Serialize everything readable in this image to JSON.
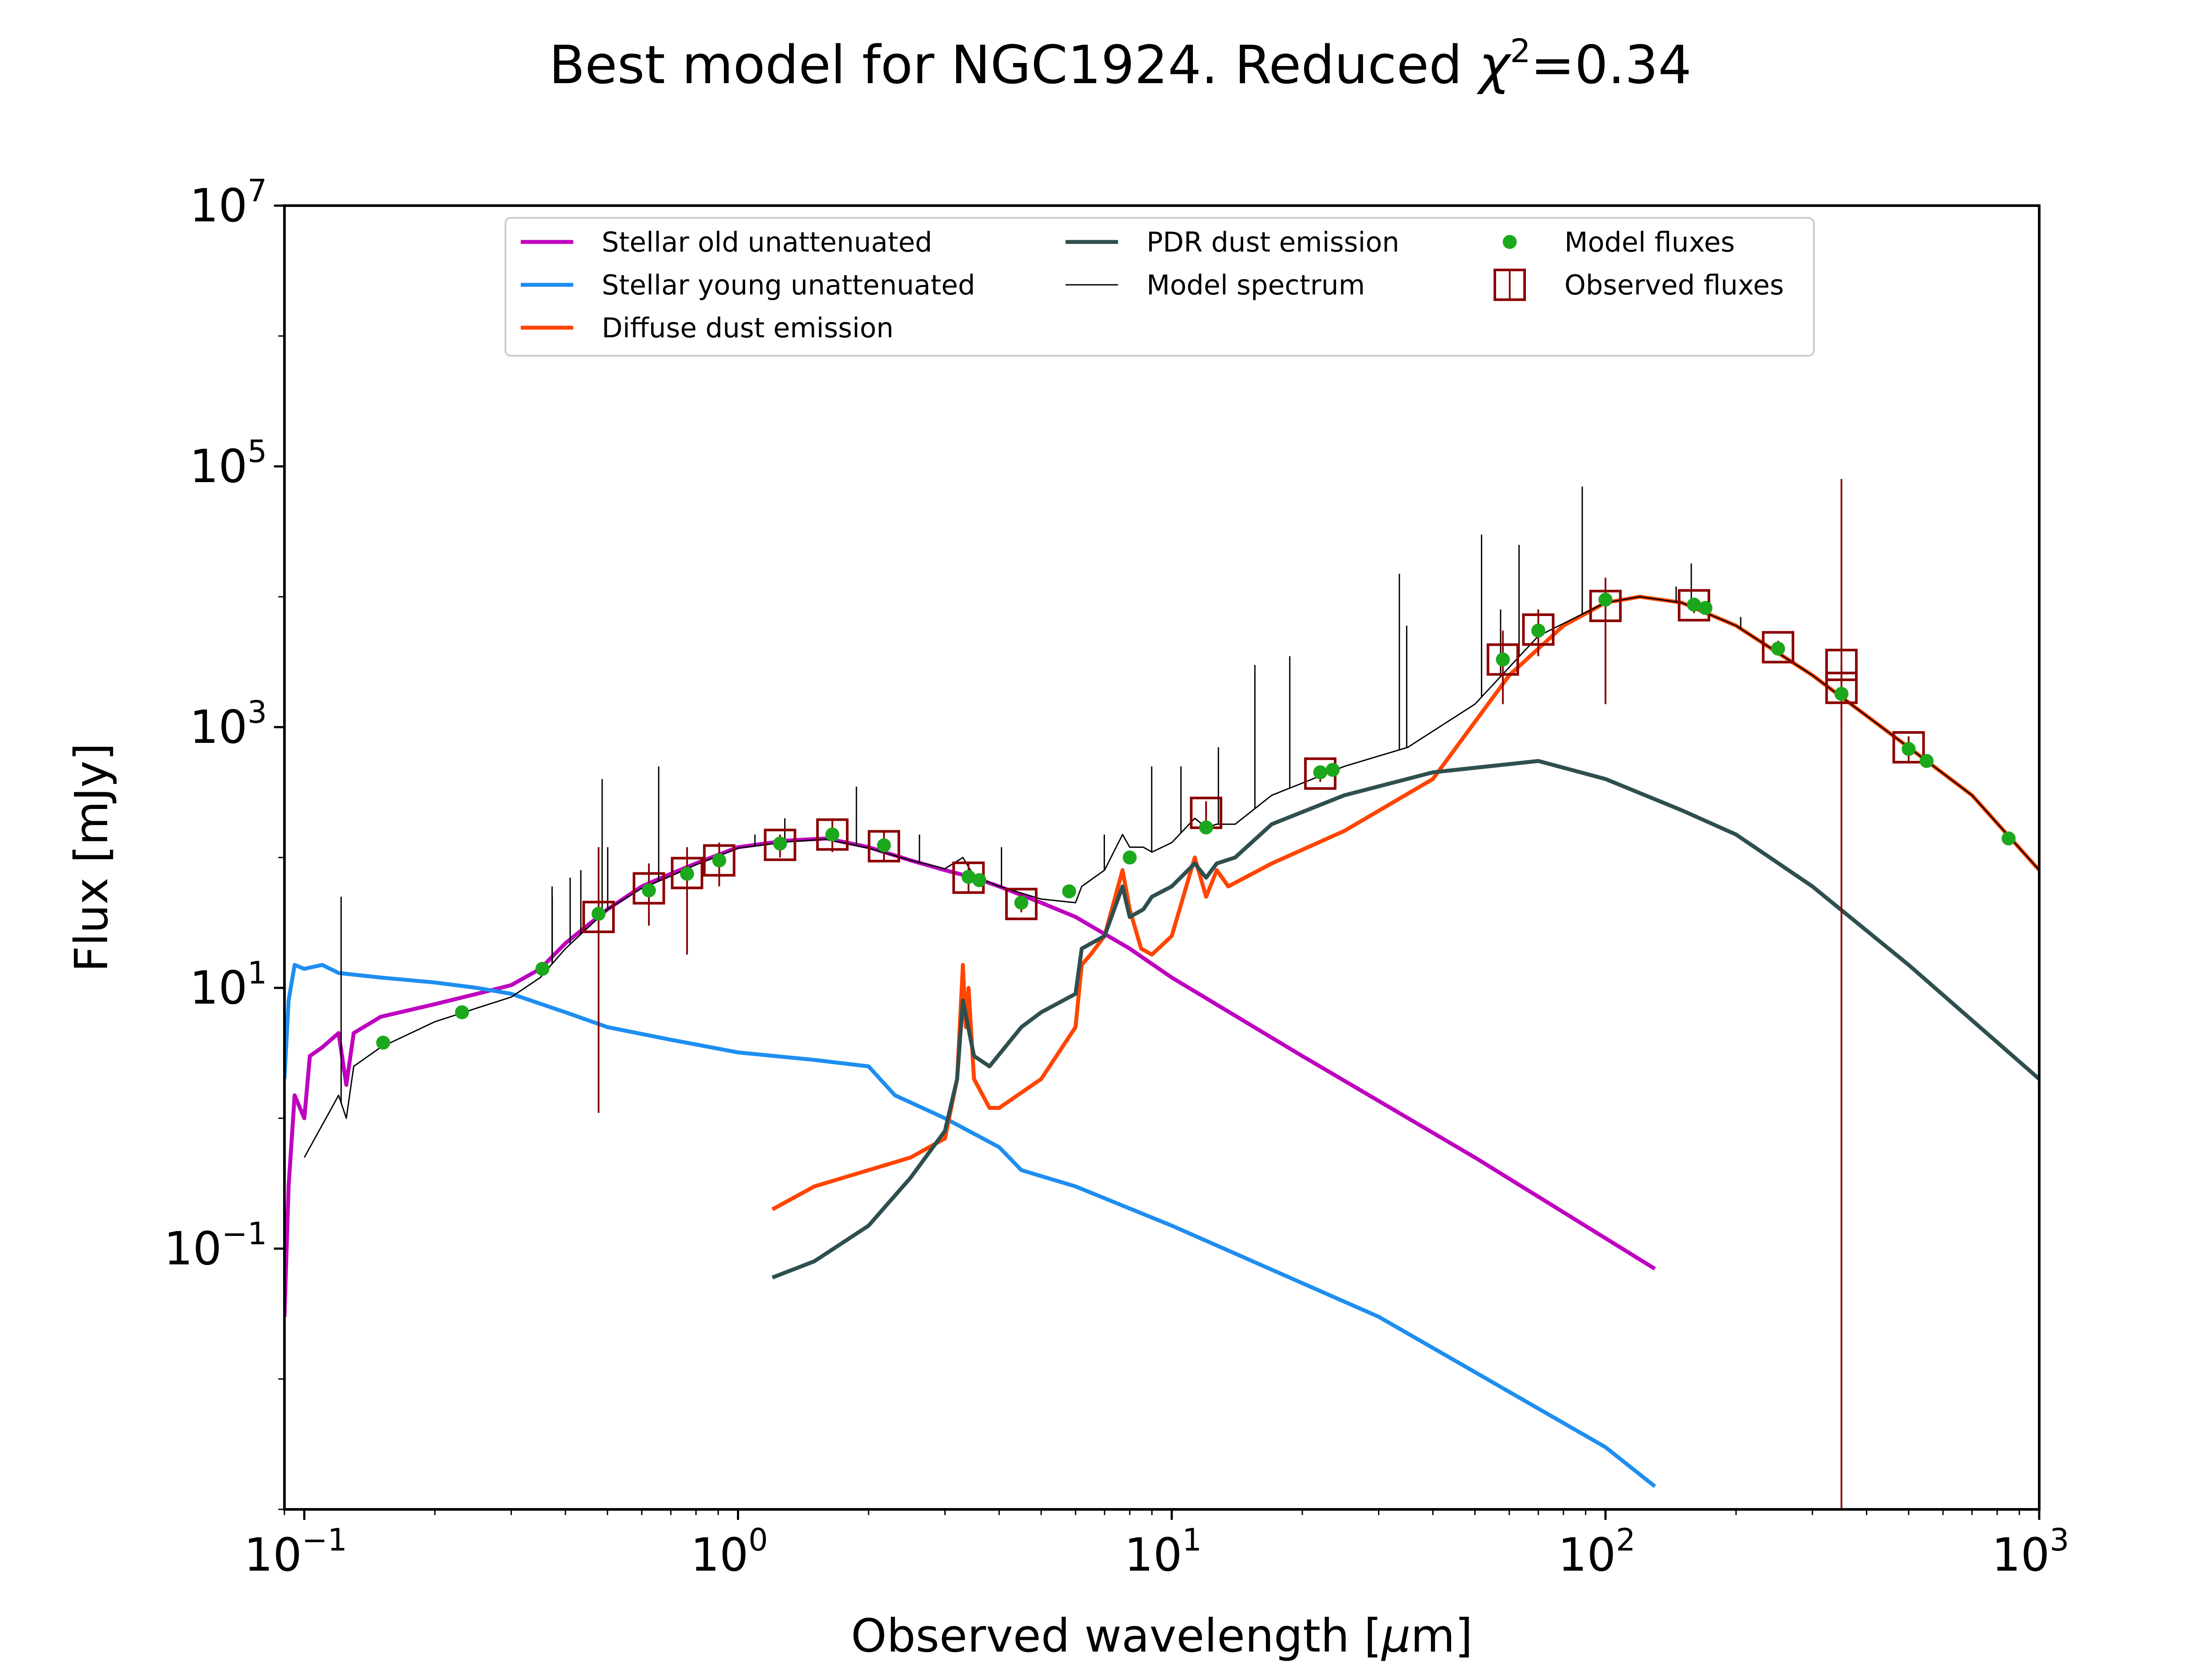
{
  "chart_data": {
    "type": "line",
    "title": "Best model for NGC1924. Reduced χ²=0.34",
    "title_parts": {
      "main": "Best model for NGC1924. Reduced ",
      "chi": "χ",
      "sup": "2",
      "value": "=0.34"
    },
    "xlabel": "Observed wavelength [μm]",
    "xlabel_parts": {
      "before": "Observed wavelength [",
      "mu": "μ",
      "after": "m]"
    },
    "ylabel": "Flux [mJy]",
    "x_scale": "log",
    "y_scale": "log",
    "xlim": [
      0.09,
      1000
    ],
    "ylim": [
      0.001,
      10000000
    ],
    "x_ticks": [
      {
        "base": "10",
        "exp": "−1",
        "value": 0.1
      },
      {
        "base": "10",
        "exp": "0",
        "value": 1
      },
      {
        "base": "10",
        "exp": "1",
        "value": 10
      },
      {
        "base": "10",
        "exp": "2",
        "value": 100
      },
      {
        "base": "10",
        "exp": "3",
        "value": 1000
      }
    ],
    "y_ticks": [
      {
        "base": "10",
        "exp": "−1",
        "value": 0.1
      },
      {
        "base": "10",
        "exp": "1",
        "value": 10
      },
      {
        "base": "10",
        "exp": "3",
        "value": 1000
      },
      {
        "base": "10",
        "exp": "5",
        "value": 100000
      },
      {
        "base": "10",
        "exp": "7",
        "value": 10000000
      }
    ],
    "legend_position": "upper center",
    "series": [
      {
        "name": "Stellar old unattenuated",
        "color": "#bf00bf",
        "style": "line",
        "points": [
          [
            0.09,
            0.03
          ],
          [
            0.092,
            0.3
          ],
          [
            0.095,
            1.5
          ],
          [
            0.1,
            1.0
          ],
          [
            0.103,
            3.0
          ],
          [
            0.11,
            3.5
          ],
          [
            0.12,
            4.5
          ],
          [
            0.125,
            1.8
          ],
          [
            0.13,
            4.5
          ],
          [
            0.15,
            6.0
          ],
          [
            0.2,
            7.5
          ],
          [
            0.25,
            9.0
          ],
          [
            0.3,
            10.5
          ],
          [
            0.35,
            14
          ],
          [
            0.4,
            22
          ],
          [
            0.5,
            40
          ],
          [
            0.6,
            60
          ],
          [
            0.7,
            75
          ],
          [
            0.8,
            90
          ],
          [
            1.0,
            120
          ],
          [
            1.3,
            135
          ],
          [
            1.6,
            140
          ],
          [
            2.0,
            120
          ],
          [
            2.5,
            95
          ],
          [
            3.0,
            80
          ],
          [
            3.5,
            70
          ],
          [
            4.0,
            60
          ],
          [
            5.0,
            45
          ],
          [
            6.0,
            35
          ],
          [
            8.0,
            20
          ],
          [
            10.0,
            12
          ],
          [
            20.0,
            3.0
          ],
          [
            50.0,
            0.5
          ],
          [
            130.0,
            0.07
          ]
        ]
      },
      {
        "name": "Stellar young unattenuated",
        "color": "#1e8ef0",
        "style": "line",
        "points": [
          [
            0.09,
            2.0
          ],
          [
            0.092,
            8.0
          ],
          [
            0.095,
            15
          ],
          [
            0.1,
            14
          ],
          [
            0.11,
            15
          ],
          [
            0.12,
            13
          ],
          [
            0.15,
            12
          ],
          [
            0.2,
            11
          ],
          [
            0.25,
            10
          ],
          [
            0.3,
            9
          ],
          [
            0.4,
            6.5
          ],
          [
            0.5,
            5.0
          ],
          [
            0.7,
            4.0
          ],
          [
            1.0,
            3.2
          ],
          [
            1.5,
            2.8
          ],
          [
            2.0,
            2.5
          ],
          [
            2.3,
            1.5
          ],
          [
            3.0,
            1.0
          ],
          [
            4.0,
            0.6
          ],
          [
            4.5,
            0.4
          ],
          [
            6.0,
            0.3
          ],
          [
            10.0,
            0.15
          ],
          [
            30.0,
            0.03
          ],
          [
            100.0,
            0.003
          ],
          [
            130.0,
            0.0015
          ]
        ]
      },
      {
        "name": "Diffuse dust emission",
        "color": "#ff4500",
        "style": "line",
        "points": [
          [
            1.2,
            0.2
          ],
          [
            1.5,
            0.3
          ],
          [
            2.0,
            0.4
          ],
          [
            2.5,
            0.5
          ],
          [
            3.0,
            0.7
          ],
          [
            3.2,
            2.0
          ],
          [
            3.3,
            15
          ],
          [
            3.35,
            5
          ],
          [
            3.4,
            10
          ],
          [
            3.5,
            2
          ],
          [
            3.8,
            1.2
          ],
          [
            4.0,
            1.2
          ],
          [
            5.0,
            2.0
          ],
          [
            6.0,
            5.0
          ],
          [
            6.2,
            15
          ],
          [
            6.5,
            18
          ],
          [
            7.0,
            25
          ],
          [
            7.7,
            80
          ],
          [
            8.0,
            40
          ],
          [
            8.5,
            20
          ],
          [
            9.0,
            18
          ],
          [
            10.0,
            25
          ],
          [
            11.3,
            100
          ],
          [
            12.0,
            50
          ],
          [
            12.7,
            80
          ],
          [
            13.5,
            60
          ],
          [
            17.0,
            90
          ],
          [
            25.0,
            160
          ],
          [
            40.0,
            400
          ],
          [
            60.0,
            2500
          ],
          [
            80.0,
            6000
          ],
          [
            100.0,
            9000
          ],
          [
            120.0,
            10000
          ],
          [
            150.0,
            9000
          ],
          [
            200.0,
            6000
          ],
          [
            300.0,
            2500
          ],
          [
            500.0,
            700
          ],
          [
            700.0,
            300
          ],
          [
            1000.0,
            80
          ]
        ]
      },
      {
        "name": "PDR dust emission",
        "color": "#2f4f4f",
        "style": "line",
        "points": [
          [
            1.2,
            0.06
          ],
          [
            1.5,
            0.08
          ],
          [
            2.0,
            0.15
          ],
          [
            2.5,
            0.35
          ],
          [
            3.0,
            0.8
          ],
          [
            3.2,
            2.0
          ],
          [
            3.3,
            8.0
          ],
          [
            3.5,
            3.0
          ],
          [
            3.8,
            2.5
          ],
          [
            4.5,
            5.0
          ],
          [
            5.0,
            6.5
          ],
          [
            6.0,
            9
          ],
          [
            6.2,
            20
          ],
          [
            7.0,
            25
          ],
          [
            7.7,
            60
          ],
          [
            8.0,
            35
          ],
          [
            8.6,
            40
          ],
          [
            9.0,
            50
          ],
          [
            10.0,
            60
          ],
          [
            11.3,
            90
          ],
          [
            12.0,
            70
          ],
          [
            12.7,
            90
          ],
          [
            14.0,
            100
          ],
          [
            17.0,
            180
          ],
          [
            25.0,
            300
          ],
          [
            40.0,
            450
          ],
          [
            70.0,
            550
          ],
          [
            100.0,
            400
          ],
          [
            150.0,
            230
          ],
          [
            200.0,
            150
          ],
          [
            300.0,
            60
          ],
          [
            500.0,
            15
          ],
          [
            1000.0,
            2.0
          ]
        ]
      },
      {
        "name": "Model spectrum",
        "color": "#000000",
        "style": "line",
        "points": [
          [
            0.1,
            0.5
          ],
          [
            0.12,
            1.5
          ],
          [
            0.125,
            1.0
          ],
          [
            0.13,
            2.5
          ],
          [
            0.15,
            3.5
          ],
          [
            0.2,
            5.5
          ],
          [
            0.25,
            7
          ],
          [
            0.3,
            8.5
          ],
          [
            0.35,
            12
          ],
          [
            0.4,
            20
          ],
          [
            0.5,
            40
          ],
          [
            0.6,
            58
          ],
          [
            0.7,
            72
          ],
          [
            0.8,
            88
          ],
          [
            1.0,
            118
          ],
          [
            1.3,
            132
          ],
          [
            1.6,
            138
          ],
          [
            2.0,
            118
          ],
          [
            2.5,
            95
          ],
          [
            3.0,
            82
          ],
          [
            3.3,
            100
          ],
          [
            3.5,
            72
          ],
          [
            4.0,
            60
          ],
          [
            5.0,
            48
          ],
          [
            6.0,
            45
          ],
          [
            6.2,
            60
          ],
          [
            7.0,
            80
          ],
          [
            7.7,
            150
          ],
          [
            8.0,
            120
          ],
          [
            8.6,
            120
          ],
          [
            9.0,
            110
          ],
          [
            10.0,
            130
          ],
          [
            11.3,
            200
          ],
          [
            12.0,
            170
          ],
          [
            12.7,
            180
          ],
          [
            14.0,
            180
          ],
          [
            17.0,
            300
          ],
          [
            25.0,
            500
          ],
          [
            35.0,
            700
          ],
          [
            50.0,
            1500
          ],
          [
            70.0,
            5000
          ],
          [
            100.0,
            9000
          ],
          [
            120.0,
            10000
          ],
          [
            150.0,
            9000
          ],
          [
            200.0,
            6000
          ],
          [
            300.0,
            2500
          ],
          [
            500.0,
            700
          ],
          [
            700.0,
            300
          ],
          [
            1000.0,
            80
          ]
        ]
      },
      {
        "name": "Model fluxes",
        "color": "#1ca81c",
        "style": "marker",
        "points": [
          [
            0.152,
            3.8
          ],
          [
            0.231,
            6.5
          ],
          [
            0.354,
            14
          ],
          [
            0.477,
            37
          ],
          [
            0.623,
            56
          ],
          [
            0.763,
            75
          ],
          [
            0.905,
            95
          ],
          [
            1.25,
            128
          ],
          [
            1.65,
            150
          ],
          [
            2.17,
            124
          ],
          [
            3.4,
            71
          ],
          [
            3.6,
            67
          ],
          [
            4.5,
            45
          ],
          [
            5.8,
            55
          ],
          [
            8.0,
            100
          ],
          [
            12.0,
            170
          ],
          [
            22.0,
            450
          ],
          [
            23.5,
            470
          ],
          [
            58.0,
            3300
          ],
          [
            70.0,
            5500
          ],
          [
            100.0,
            9500
          ],
          [
            160.0,
            8700
          ],
          [
            170.0,
            8200
          ],
          [
            250.0,
            4000
          ],
          [
            350.0,
            1800
          ],
          [
            500.0,
            680
          ],
          [
            550.0,
            550
          ],
          [
            850.0,
            140
          ]
        ]
      },
      {
        "name": "Observed fluxes",
        "color": "#8b0000",
        "style": "marker-errorbar",
        "points": [
          [
            0.477,
            35,
            1.1,
            120
          ],
          [
            0.623,
            58,
            30,
            90
          ],
          [
            0.763,
            76,
            18,
            120
          ],
          [
            0.905,
            95,
            60,
            130
          ],
          [
            1.25,
            125,
            100,
            150
          ],
          [
            1.65,
            150,
            110,
            200
          ],
          [
            2.17,
            122,
            95,
            160
          ],
          [
            3.4,
            70,
            55,
            90
          ],
          [
            4.5,
            44,
            38,
            52
          ],
          [
            12.0,
            220,
            180,
            270
          ],
          [
            22.0,
            440,
            380,
            500
          ],
          [
            58.0,
            3300,
            1500,
            5500
          ],
          [
            70.0,
            5600,
            3500,
            8000
          ],
          [
            100.0,
            8500,
            1500,
            14000
          ],
          [
            160.0,
            8600,
            7500,
            9800
          ],
          [
            250.0,
            4100,
            3600,
            4600
          ],
          [
            350.0,
            3000,
            0.001,
            80000
          ],
          [
            350.0,
            2000,
            1000,
            3000
          ],
          [
            500.0,
            700,
            550,
            850
          ]
        ]
      }
    ],
    "emission_lines": [
      {
        "x": 0.1216,
        "top": 50
      },
      {
        "x": 0.373,
        "top": 50
      },
      {
        "x": 0.3727,
        "top": 60
      },
      {
        "x": 0.4102,
        "top": 70
      },
      {
        "x": 0.4341,
        "top": 80
      },
      {
        "x": 0.4861,
        "top": 400
      },
      {
        "x": 0.5007,
        "top": 120
      },
      {
        "x": 0.6563,
        "top": 500
      },
      {
        "x": 1.094,
        "top": 150
      },
      {
        "x": 1.282,
        "top": 200
      },
      {
        "x": 1.875,
        "top": 350
      },
      {
        "x": 2.62,
        "top": 150
      },
      {
        "x": 4.05,
        "top": 120
      },
      {
        "x": 6.99,
        "top": 150
      },
      {
        "x": 8.99,
        "top": 500
      },
      {
        "x": 10.5,
        "top": 500
      },
      {
        "x": 12.81,
        "top": 700
      },
      {
        "x": 15.55,
        "top": 3000
      },
      {
        "x": 18.71,
        "top": 3500
      },
      {
        "x": 33.48,
        "top": 15000
      },
      {
        "x": 34.81,
        "top": 6000
      },
      {
        "x": 51.8,
        "top": 30000
      },
      {
        "x": 57.3,
        "top": 8000
      },
      {
        "x": 63.2,
        "top": 25000
      },
      {
        "x": 88.4,
        "top": 70000
      },
      {
        "x": 145.5,
        "top": 12000
      },
      {
        "x": 157.7,
        "top": 18000
      },
      {
        "x": 205.0,
        "top": 7000
      }
    ]
  }
}
